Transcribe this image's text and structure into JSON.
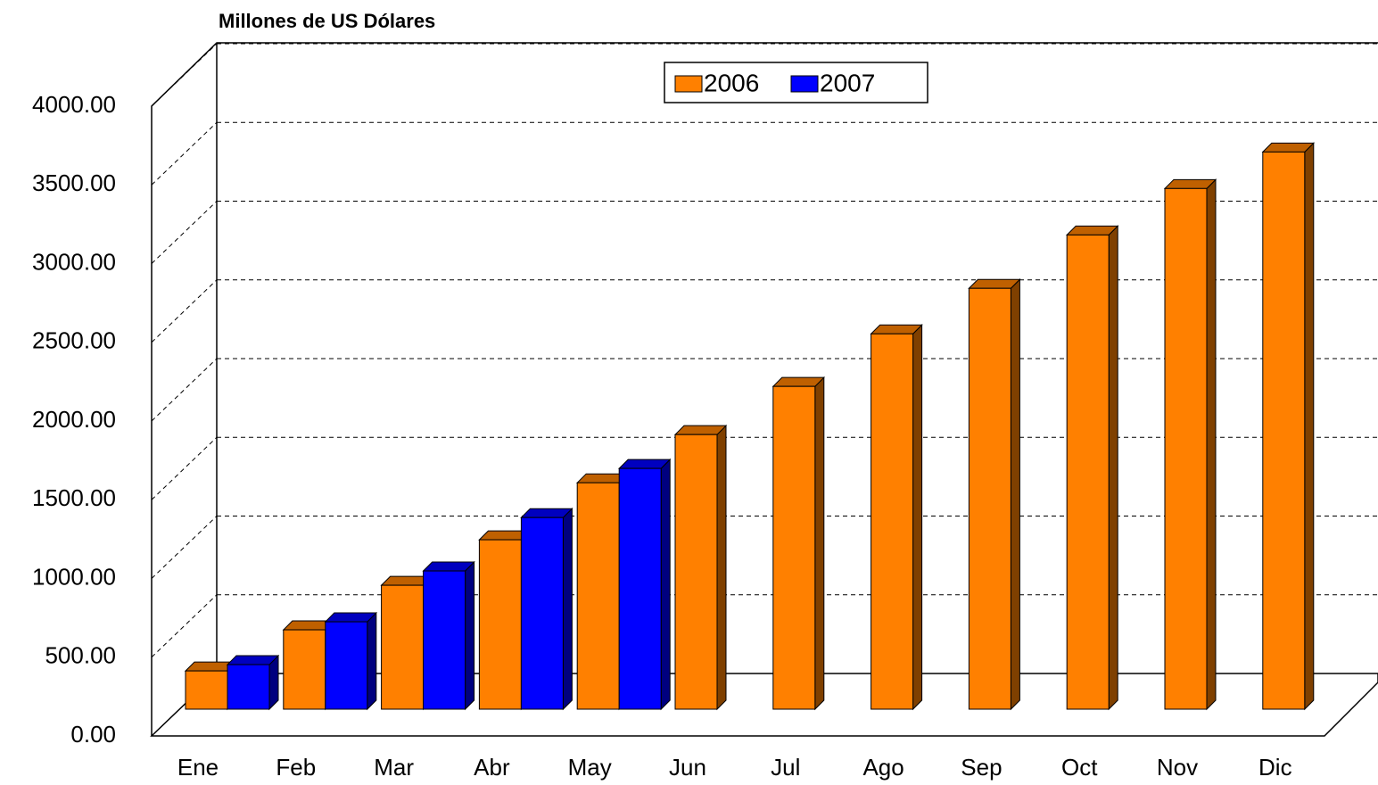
{
  "chart_data": {
    "type": "bar3d",
    "title": "Millones de US Dólares",
    "categories": [
      "Ene",
      "Feb",
      "Mar",
      "Abr",
      "May",
      "Jun",
      "Jul",
      "Ago",
      "Sep",
      "Oct",
      "Nov",
      "Dic"
    ],
    "series": [
      {
        "name": "2006",
        "color": "#ff8000",
        "values": [
          243,
          504,
          787,
          1076,
          1438,
          1744,
          2050,
          2384,
          2673,
          3012,
          3307,
          3539
        ]
      },
      {
        "name": "2007",
        "color": "#0000ff",
        "values": [
          283,
          555,
          878,
          1217,
          1529,
          null,
          null,
          null,
          null,
          null,
          null,
          null
        ]
      }
    ],
    "ylim": [
      0,
      4000
    ],
    "yticks": [
      {
        "value": 0,
        "label": "0.00"
      },
      {
        "value": 500,
        "label": "500.00"
      },
      {
        "value": 1000,
        "label": "1000.00"
      },
      {
        "value": 1500,
        "label": "1500.00"
      },
      {
        "value": 2000,
        "label": "2000.00"
      },
      {
        "value": 2500,
        "label": "2500.00"
      },
      {
        "value": 3000,
        "label": "3000.00"
      },
      {
        "value": 3500,
        "label": "3500.00"
      },
      {
        "value": 4000,
        "label": "4000.00"
      }
    ],
    "grid": true
  }
}
